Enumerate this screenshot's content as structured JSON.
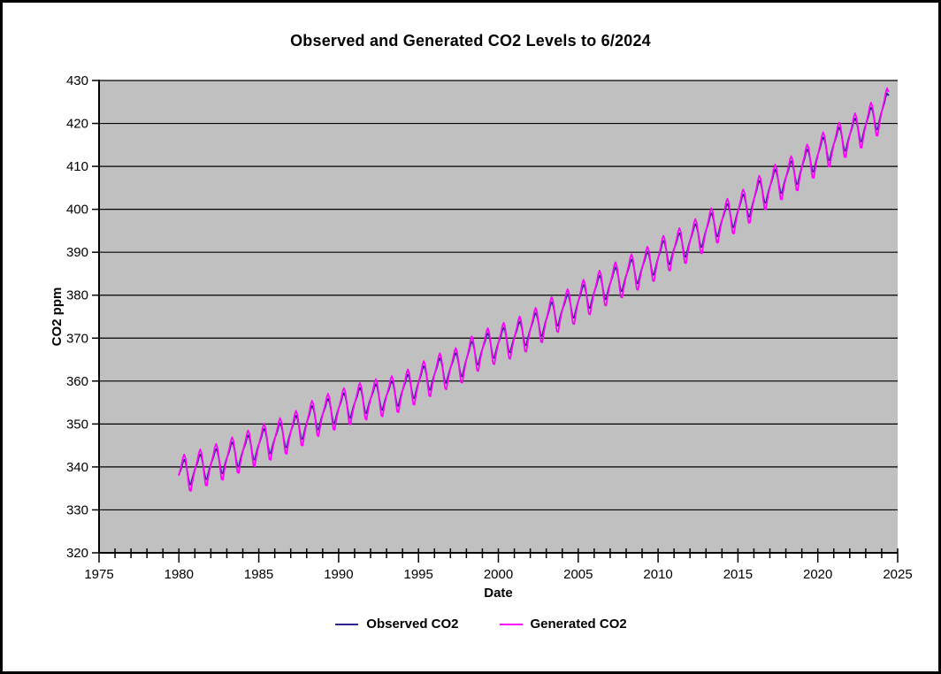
{
  "title": "Observed and Generated CO2 Levels to 6/2024",
  "x_axis": {
    "label": "Date",
    "major_ticks": [
      1975,
      1980,
      1985,
      1990,
      1995,
      2000,
      2005,
      2010,
      2015,
      2020,
      2025
    ],
    "minor_tick_step_years": 1,
    "range": [
      1975,
      2025
    ]
  },
  "y_axis": {
    "label": "CO2 ppm",
    "ticks": [
      320,
      330,
      340,
      350,
      360,
      370,
      380,
      390,
      400,
      410,
      420,
      430
    ],
    "range": [
      320,
      430
    ]
  },
  "legend": [
    {
      "label": "Observed CO2",
      "color": "#26268c"
    },
    {
      "label": "Generated CO2",
      "color": "#ff00ff"
    }
  ],
  "plot": {
    "background": "#c0c0c0",
    "gridline_color": "#000000",
    "axis_color": "#000000",
    "outer_border_color": "#000000",
    "grid_on": true,
    "legend_position": "bottom-center"
  },
  "chart_data": {
    "type": "line",
    "title": "Observed and Generated CO2 Levels to 6/2024",
    "xlabel": "Date",
    "ylabel": "CO2 ppm",
    "xlim": [
      1975,
      2025
    ],
    "ylim": [
      320,
      430
    ],
    "x_unit": "decimal_year",
    "sampling": "monthly",
    "start_year": 1980,
    "end_decimal_year": 2024.417,
    "months": 534,
    "composition": "monthly value = linear interpolation of annual_means (anchored at mid-year) + seasonal_monthly_offsets[month]",
    "series": [
      {
        "name": "Observed CO2",
        "color": "#26268c",
        "annual_years": [
          1980,
          1981,
          1982,
          1983,
          1984,
          1985,
          1986,
          1987,
          1988,
          1989,
          1990,
          1991,
          1992,
          1993,
          1994,
          1995,
          1996,
          1997,
          1998,
          1999,
          2000,
          2001,
          2002,
          2003,
          2004,
          2005,
          2006,
          2007,
          2008,
          2009,
          2010,
          2011,
          2012,
          2013,
          2014,
          2015,
          2016,
          2017,
          2018,
          2019,
          2020,
          2021,
          2022,
          2023,
          2024
        ],
        "annual_means": [
          338.9,
          340.1,
          341.4,
          343.0,
          344.6,
          346.1,
          347.4,
          349.2,
          351.6,
          353.1,
          354.4,
          355.6,
          356.4,
          357.1,
          358.8,
          360.8,
          362.6,
          363.7,
          366.7,
          368.4,
          369.6,
          371.1,
          373.2,
          375.8,
          377.5,
          379.8,
          381.9,
          383.8,
          385.6,
          387.4,
          390.1,
          391.7,
          393.9,
          396.5,
          398.6,
          400.8,
          404.2,
          406.6,
          408.5,
          411.4,
          414.2,
          416.4,
          418.5,
          421.1,
          424.6
        ],
        "seasonal_monthly_offsets": [
          -0.1,
          0.6,
          1.4,
          2.5,
          3.0,
          2.3,
          0.7,
          -1.4,
          -3.1,
          -3.3,
          -2.1,
          -1.0
        ]
      },
      {
        "name": "Generated CO2",
        "color": "#ff00ff",
        "annual_years": [
          1980,
          1981,
          1982,
          1983,
          1984,
          1985,
          1986,
          1987,
          1988,
          1989,
          1990,
          1991,
          1992,
          1993,
          1994,
          1995,
          1996,
          1997,
          1998,
          1999,
          2000,
          2001,
          2002,
          2003,
          2004,
          2005,
          2006,
          2007,
          2008,
          2009,
          2010,
          2011,
          2012,
          2013,
          2014,
          2015,
          2016,
          2017,
          2018,
          2019,
          2020,
          2021,
          2022,
          2023,
          2024
        ],
        "annual_means": [
          338.9,
          340.1,
          341.4,
          343.0,
          344.6,
          346.1,
          347.4,
          349.2,
          351.6,
          353.1,
          354.4,
          355.6,
          356.4,
          357.1,
          358.8,
          360.8,
          362.6,
          363.7,
          366.7,
          368.4,
          369.6,
          371.1,
          373.2,
          375.8,
          377.5,
          379.8,
          381.9,
          383.8,
          385.6,
          387.4,
          390.1,
          391.7,
          393.9,
          396.5,
          398.6,
          400.8,
          404.2,
          406.6,
          408.5,
          411.4,
          414.2,
          416.4,
          418.5,
          421.1,
          424.6
        ],
        "seasonal_monthly_offsets": [
          -0.2,
          0.9,
          2.0,
          3.5,
          4.2,
          3.2,
          0.9,
          -2.1,
          -4.5,
          -4.8,
          -3.0,
          -1.5
        ]
      }
    ]
  }
}
